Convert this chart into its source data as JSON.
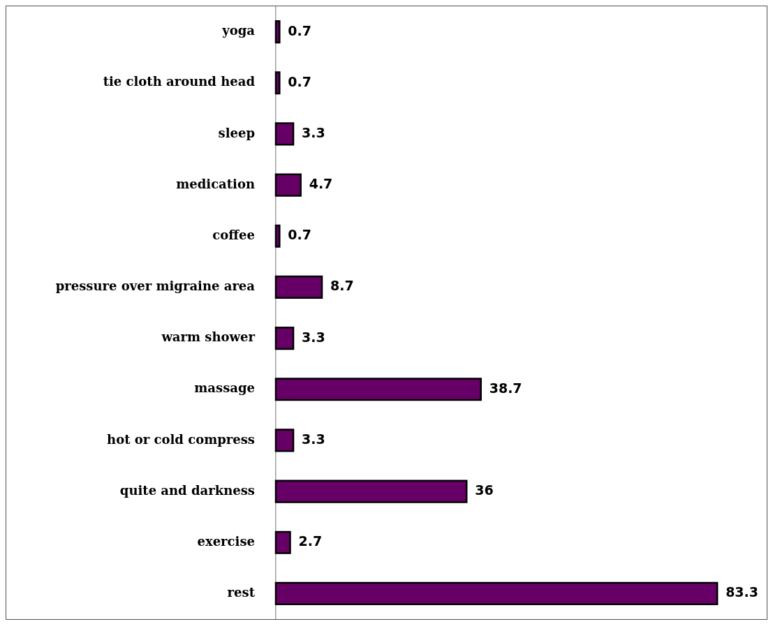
{
  "chart_data": {
    "type": "bar",
    "orientation": "horizontal",
    "categories": [
      "yoga",
      "tie cloth around head",
      "sleep",
      "medication",
      "coffee",
      "pressure over migraine area",
      "warm shower",
      "massage",
      "hot or cold compress",
      "quite and darkness",
      "exercise",
      "rest"
    ],
    "values": [
      0.7,
      0.7,
      3.3,
      4.7,
      0.7,
      8.7,
      3.3,
      38.7,
      3.3,
      36,
      2.7,
      83.3
    ],
    "color": "#660066",
    "data_labels": true,
    "tick_labels": "y"
  }
}
